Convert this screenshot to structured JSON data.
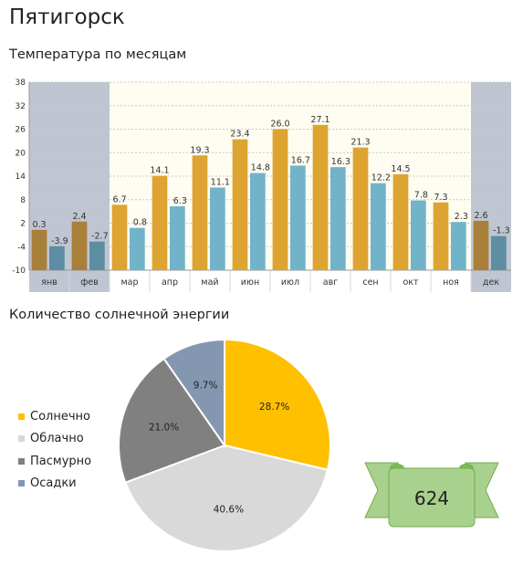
{
  "page": {
    "title": "Пятигорск"
  },
  "temperature": {
    "section_title": "Температура по месяцам"
  },
  "solar": {
    "section_title": "Количество солнечной энергии"
  },
  "ribbon": {
    "value": "624"
  },
  "chart_data": [
    {
      "type": "bar",
      "categories": [
        "янв",
        "фев",
        "мар",
        "апр",
        "май",
        "июн",
        "июл",
        "авг",
        "сен",
        "окт",
        "ноя",
        "дек"
      ],
      "series": [
        {
          "values": [
            0.3,
            2.4,
            6.7,
            14.1,
            19.3,
            23.4,
            26.0,
            27.1,
            21.3,
            14.5,
            7.3,
            2.6
          ],
          "labels": [
            "0.3",
            "2.4",
            "6.7",
            "14.1",
            "19.3",
            "23.4",
            "26.0",
            "27.1",
            "21.3",
            "14.5",
            "7.3",
            "2.6"
          ]
        },
        {
          "values": [
            -3.9,
            -2.7,
            0.8,
            6.3,
            11.1,
            14.8,
            16.7,
            16.3,
            12.2,
            7.8,
            2.3,
            -1.3
          ],
          "labels": [
            "-3.9",
            "-2.7",
            "0.8",
            "6.3",
            "11.1",
            "14.8",
            "16.7",
            "16.3",
            "12.2",
            "7.8",
            "2.3",
            "-1.3"
          ]
        }
      ],
      "yticks": [
        "-10",
        "-4",
        "2",
        "8",
        "14",
        "20",
        "26",
        "32",
        "38"
      ],
      "ylim": [
        -10,
        38
      ],
      "winter_months": [
        "янв",
        "фев",
        "дек"
      ],
      "grid": true,
      "colors": {
        "high": "#DEA431",
        "low": "#71B4C9",
        "high_winter": "#A98039",
        "low_winter": "#5C8DA3",
        "winter_band": "#BFC5D1",
        "summer_band": "#FFFDF1"
      }
    },
    {
      "type": "pie",
      "categories": [
        "Солнечно",
        "Облачно",
        "Пасмурно",
        "Осадки"
      ],
      "values": [
        28.7,
        40.6,
        21.0,
        9.7
      ],
      "labels": [
        "28.7%",
        "40.6%",
        "21.0%",
        "9.7%"
      ],
      "colors": [
        "#FFC000",
        "#D9D9D9",
        "#808080",
        "#8497B0"
      ],
      "legend": "left"
    }
  ]
}
